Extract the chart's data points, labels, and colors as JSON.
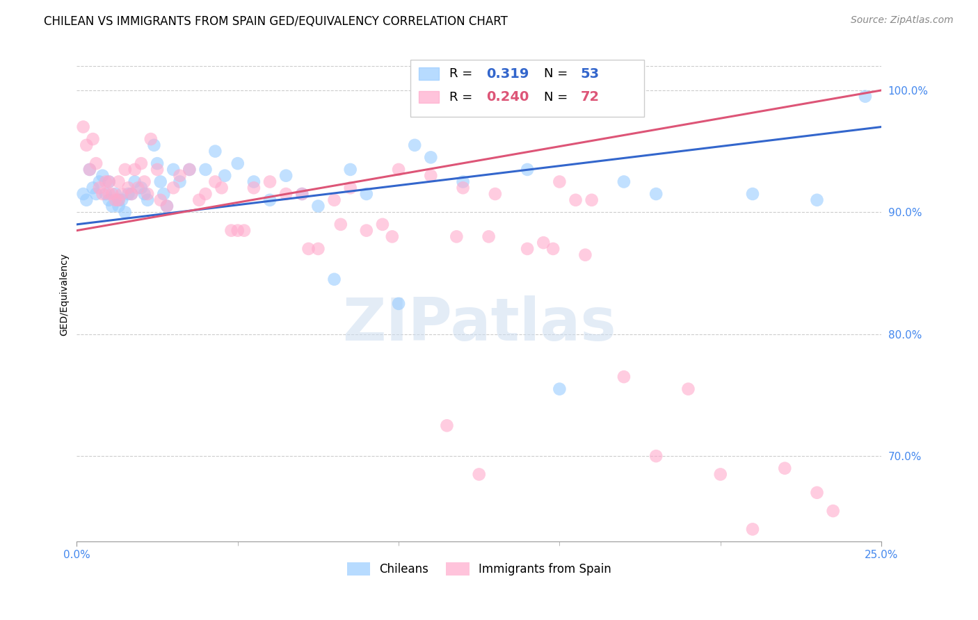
{
  "title": "CHILEAN VS IMMIGRANTS FROM SPAIN GED/EQUIVALENCY CORRELATION CHART",
  "source": "Source: ZipAtlas.com",
  "xmin": 0.0,
  "xmax": 25.0,
  "ymin": 63.0,
  "ymax": 103.5,
  "ytick_vals": [
    70.0,
    80.0,
    90.0,
    100.0
  ],
  "xtick_vals": [
    0.0,
    25.0
  ],
  "xtick_minor": [
    5.0,
    10.0,
    15.0,
    20.0
  ],
  "gridline_color": "#cccccc",
  "background_color": "#ffffff",
  "chileans_color": "#99ccff",
  "immigrants_color": "#ffaacc",
  "chileans_line_color": "#3366cc",
  "immigrants_line_color": "#dd5577",
  "chileans_R": 0.319,
  "chileans_N": 53,
  "immigrants_R": 0.24,
  "immigrants_N": 72,
  "watermark": "ZIPatlas",
  "ylabel": "GED/Equivalency",
  "chileans_x": [
    0.2,
    0.3,
    0.4,
    0.5,
    0.6,
    0.7,
    0.8,
    0.9,
    1.0,
    1.0,
    1.1,
    1.2,
    1.3,
    1.3,
    1.4,
    1.5,
    1.6,
    1.7,
    1.8,
    2.0,
    2.1,
    2.2,
    2.4,
    2.5,
    2.6,
    2.7,
    2.8,
    3.0,
    3.2,
    3.5,
    4.0,
    4.3,
    4.6,
    5.0,
    5.5,
    6.0,
    6.5,
    7.0,
    7.5,
    8.0,
    8.5,
    9.0,
    10.0,
    10.5,
    11.0,
    12.0,
    14.0,
    15.0,
    17.0,
    18.0,
    21.0,
    23.0,
    24.5
  ],
  "chileans_y": [
    91.5,
    91.0,
    93.5,
    92.0,
    91.5,
    92.5,
    93.0,
    91.5,
    92.5,
    91.0,
    90.5,
    91.5,
    91.0,
    90.5,
    91.0,
    90.0,
    91.5,
    91.5,
    92.5,
    92.0,
    91.5,
    91.0,
    95.5,
    94.0,
    92.5,
    91.5,
    90.5,
    93.5,
    92.5,
    93.5,
    93.5,
    95.0,
    93.0,
    94.0,
    92.5,
    91.0,
    93.0,
    91.5,
    90.5,
    84.5,
    93.5,
    91.5,
    82.5,
    95.5,
    94.5,
    92.5,
    93.5,
    75.5,
    92.5,
    91.5,
    91.5,
    91.0,
    99.5
  ],
  "immigrants_x": [
    0.2,
    0.3,
    0.4,
    0.5,
    0.6,
    0.7,
    0.8,
    0.9,
    1.0,
    1.0,
    1.1,
    1.2,
    1.3,
    1.3,
    1.4,
    1.5,
    1.6,
    1.7,
    1.8,
    1.9,
    2.0,
    2.1,
    2.2,
    2.3,
    2.5,
    2.6,
    2.8,
    3.0,
    3.2,
    3.5,
    3.8,
    4.0,
    4.3,
    4.5,
    5.0,
    5.5,
    6.0,
    6.5,
    7.0,
    7.5,
    8.0,
    8.5,
    9.0,
    10.0,
    11.0,
    11.5,
    12.0,
    12.5,
    13.0,
    14.0,
    14.5,
    15.0,
    15.5,
    16.0,
    17.0,
    18.0,
    19.0,
    20.0,
    21.0,
    22.0,
    23.0,
    23.5,
    4.8,
    5.2,
    8.2,
    7.2,
    9.5,
    9.8,
    11.8,
    12.8,
    14.8,
    15.8
  ],
  "immigrants_y": [
    97.0,
    95.5,
    93.5,
    96.0,
    94.0,
    92.0,
    91.5,
    92.5,
    92.5,
    91.5,
    91.5,
    91.0,
    92.5,
    91.0,
    91.5,
    93.5,
    92.0,
    91.5,
    93.5,
    92.0,
    94.0,
    92.5,
    91.5,
    96.0,
    93.5,
    91.0,
    90.5,
    92.0,
    93.0,
    93.5,
    91.0,
    91.5,
    92.5,
    92.0,
    88.5,
    92.0,
    92.5,
    91.5,
    91.5,
    87.0,
    91.0,
    92.0,
    88.5,
    93.5,
    93.0,
    72.5,
    92.0,
    68.5,
    91.5,
    87.0,
    87.5,
    92.5,
    91.0,
    91.0,
    76.5,
    70.0,
    75.5,
    68.5,
    64.0,
    69.0,
    67.0,
    65.5,
    88.5,
    88.5,
    89.0,
    87.0,
    89.0,
    88.0,
    88.0,
    88.0,
    87.0,
    86.5
  ],
  "title_fontsize": 12,
  "axis_label_fontsize": 10,
  "tick_fontsize": 11,
  "legend_fontsize": 13,
  "source_fontsize": 10,
  "scatter_size": 180
}
